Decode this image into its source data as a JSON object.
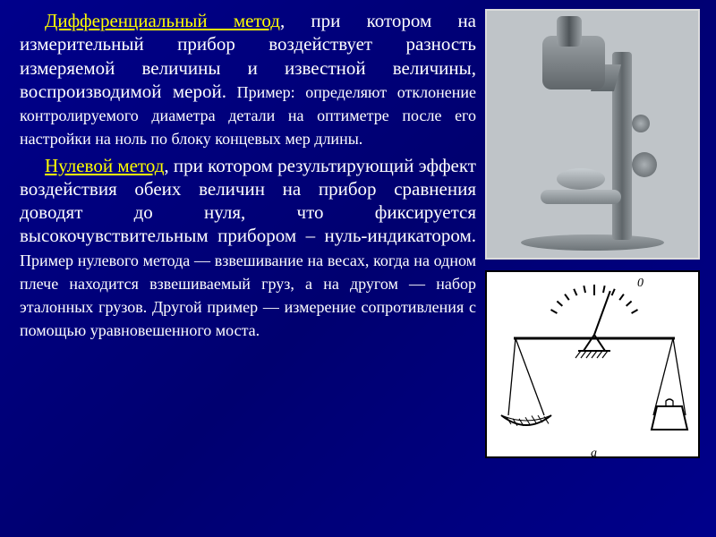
{
  "slide": {
    "background_color": "#00008b",
    "text_color": "#ffffff",
    "highlight_color": "#ffff00",
    "body_fontsize": 21,
    "example_fontsize": 18,
    "font_family": "Times New Roman"
  },
  "para1": {
    "term": "Дифференциальный метод",
    "body": ", при котором на измерительный прибор воздействует разность измеряемой величины и известной величины, воспроизводимой мерой.",
    "example": " Пример: определяют отклонение контролируемого диаметра детали на оптиметре после его настройки на ноль по блоку концевых мер длины."
  },
  "para2": {
    "term": "Нулевой метод",
    "body": ", при котором результирующий эффект воздействия обеих величин на прибор сравнения доводят до нуля, что фиксируется высокочувствительным прибором – нуль-индикатором.",
    "example": " Пример нулевого метода — взвешивание на весах, когда на одном плече находится взвешиваемый груз, а на другом — набор эталонных грузов. Другой пример — измерение сопротивления с помощью уравновешенного моста."
  },
  "diagram": {
    "type": "schematic",
    "zero_label": "0",
    "axis_label": "а",
    "stroke_color": "#000000",
    "background_color": "#ffffff",
    "line_width": 2,
    "tick_count": 11,
    "pointer_angle_deg": 20,
    "pan_left": {
      "y_offset": 0
    },
    "pan_right": {
      "y_offset": 0
    }
  },
  "photo": {
    "caption": "optimeter-instrument",
    "border_color": "#dcdcdc",
    "background_color": "#bfc4c8"
  }
}
